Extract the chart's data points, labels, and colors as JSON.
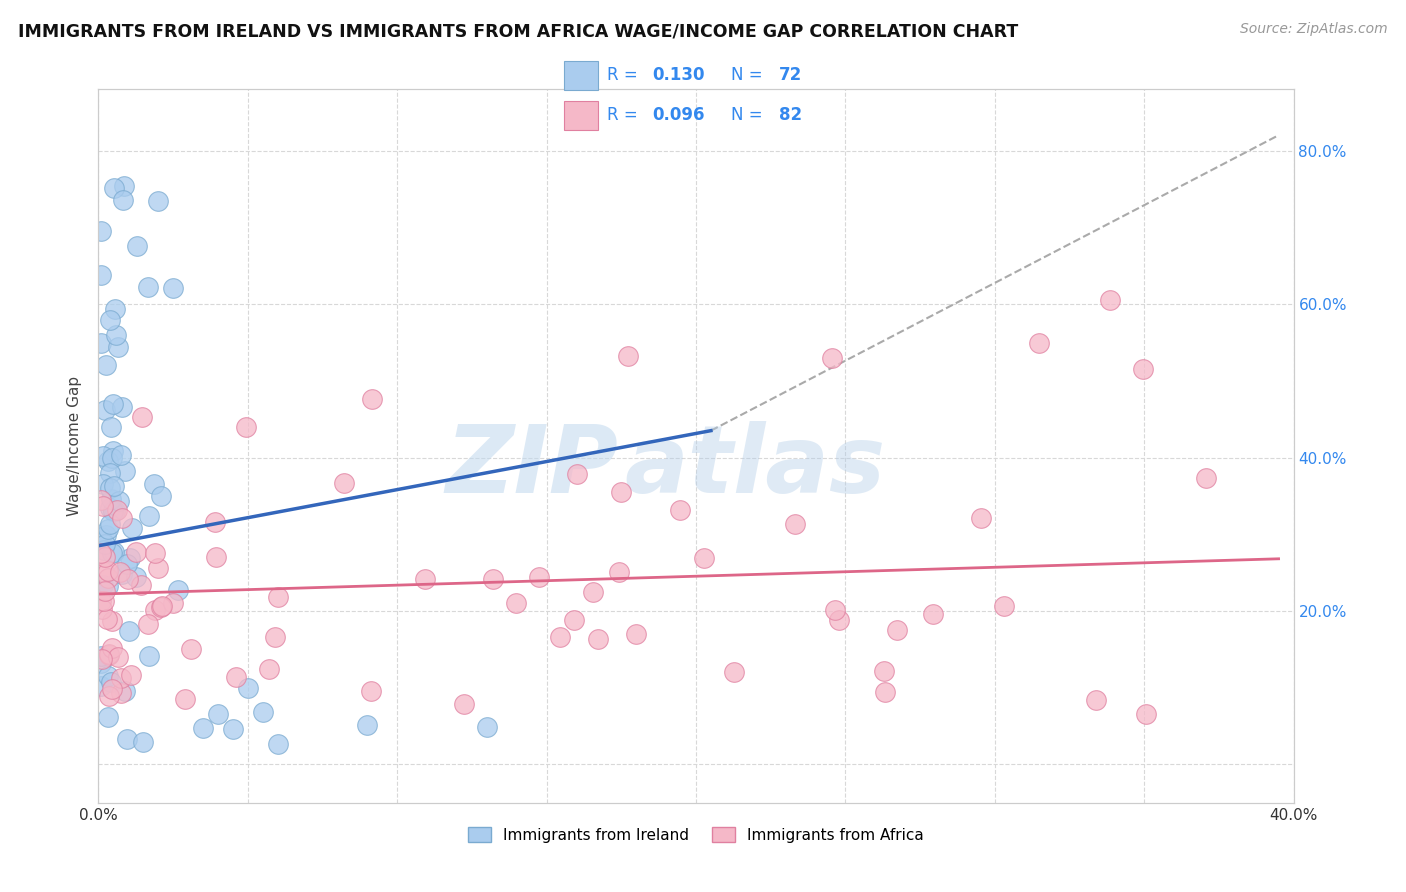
{
  "title": "IMMIGRANTS FROM IRELAND VS IMMIGRANTS FROM AFRICA WAGE/INCOME GAP CORRELATION CHART",
  "source": "Source: ZipAtlas.com",
  "ylabel": "Wage/Income Gap",
  "xlim": [
    0.0,
    0.4
  ],
  "ylim": [
    -0.05,
    0.88
  ],
  "ireland_color": "#aaccee",
  "africa_color": "#f5b8c8",
  "ireland_edge": "#7aaad0",
  "africa_edge": "#e080a0",
  "ireland_R": "0.130",
  "ireland_N": "72",
  "africa_R": "0.096",
  "africa_N": "82",
  "ireland_line_color": "#3366bb",
  "africa_line_color": "#dd6688",
  "trend_ext_color": "#aaaaaa",
  "legend_text_color": "#3388ee",
  "watermark_zip": "ZIP",
  "watermark_atlas": "atlas",
  "watermark_color": "#c8dff0",
  "ireland_line_x0": 0.0,
  "ireland_line_x1": 0.205,
  "ireland_line_y0": 0.285,
  "ireland_line_y1": 0.435,
  "ext_line_x0": 0.205,
  "ext_line_x1": 0.395,
  "ext_line_y0": 0.435,
  "ext_line_y1": 0.82,
  "africa_line_x0": 0.0,
  "africa_line_x1": 0.395,
  "africa_line_y0": 0.222,
  "africa_line_y1": 0.268
}
